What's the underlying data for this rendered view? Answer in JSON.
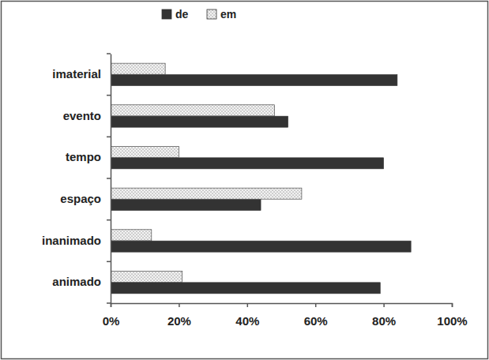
{
  "chart_data": {
    "type": "bar",
    "orientation": "horizontal",
    "legend": "top",
    "categories": [
      "imaterial",
      "evento",
      "tempo",
      "espaço",
      "inanimado",
      "animado"
    ],
    "series": [
      {
        "name": "de",
        "color": "#333333",
        "values": [
          84,
          52,
          80,
          44,
          88,
          79
        ]
      },
      {
        "name": "em",
        "color": "#f2f2f2",
        "values": [
          16,
          48,
          20,
          56,
          12,
          21
        ]
      }
    ],
    "xlim": [
      0,
      100
    ],
    "xticks": [
      {
        "value": 0,
        "label": "0%"
      },
      {
        "value": 20,
        "label": "20%"
      },
      {
        "value": 40,
        "label": "40%"
      },
      {
        "value": 60,
        "label": "60%"
      },
      {
        "value": 80,
        "label": "80%"
      },
      {
        "value": 100,
        "label": "100%"
      }
    ],
    "grid": false
  }
}
